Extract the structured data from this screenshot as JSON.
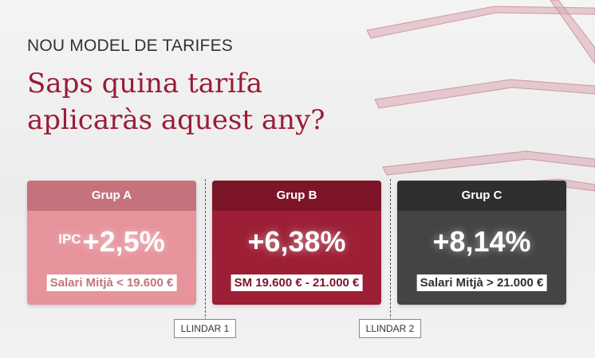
{
  "header": {
    "kicker": "NOU MODEL DE TARIFES",
    "title_lines": [
      "Saps quina tarifa",
      "aplicaràs aquest any?"
    ]
  },
  "cards": [
    {
      "group": "Grup A",
      "prefix": "IPC",
      "rate": "+2,5%",
      "range": "Salari Mitjà < 19.600 €"
    },
    {
      "group": "Grup B",
      "rate": "+6,38%",
      "range": "SM 19.600 € - 21.000 €"
    },
    {
      "group": "Grup C",
      "rate": "+8,14%",
      "range": "Salari Mitjà > 21.000 €"
    }
  ],
  "thresholds": [
    "LLINDAR 1",
    "LLINDAR 2"
  ]
}
